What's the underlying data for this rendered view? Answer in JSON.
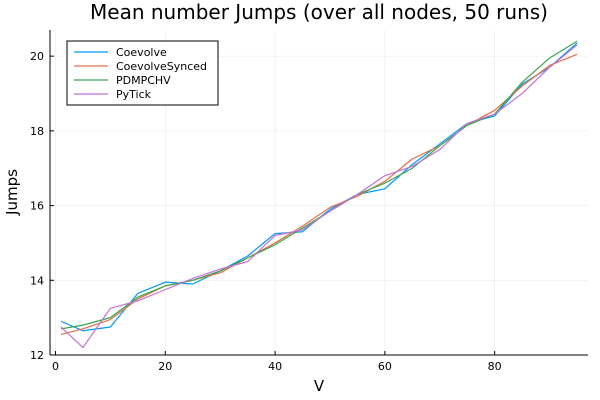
{
  "chart_data": {
    "type": "line",
    "title": "Mean number Jumps (over all nodes, 50 runs)",
    "xlabel": "V",
    "ylabel": "Jumps",
    "xlim": [
      -1,
      97
    ],
    "ylim": [
      12,
      20.7
    ],
    "xticks": [
      0,
      20,
      40,
      60,
      80
    ],
    "yticks": [
      12,
      14,
      16,
      18,
      20
    ],
    "grid": true,
    "legend_position": "top-left",
    "series": [
      {
        "name": "Coevolve",
        "color": "#009AFA",
        "x": [
          1,
          5,
          10,
          15,
          20,
          25,
          30,
          35,
          40,
          45,
          50,
          55,
          60,
          65,
          70,
          75,
          80,
          85,
          90,
          95
        ],
        "y": [
          12.9,
          12.65,
          12.75,
          13.65,
          13.95,
          13.9,
          14.25,
          14.65,
          15.25,
          15.3,
          15.9,
          16.3,
          16.45,
          17.1,
          17.65,
          18.2,
          18.4,
          19.25,
          19.7,
          20.35
        ]
      },
      {
        "name": "CoevolveSynced",
        "color": "#E26F46",
        "x": [
          1,
          5,
          10,
          15,
          20,
          25,
          30,
          35,
          40,
          45,
          50,
          55,
          60,
          65,
          70,
          75,
          80,
          85,
          90,
          95
        ],
        "y": [
          12.55,
          12.7,
          12.95,
          13.5,
          13.85,
          14.0,
          14.2,
          14.6,
          15.0,
          15.45,
          15.95,
          16.25,
          16.65,
          17.25,
          17.6,
          18.15,
          18.55,
          19.2,
          19.75,
          20.05
        ]
      },
      {
        "name": "PDMPCHV",
        "color": "#3DA44D",
        "x": [
          1,
          5,
          10,
          15,
          20,
          25,
          30,
          35,
          40,
          45,
          50,
          55,
          60,
          65,
          70,
          75,
          80,
          85,
          90,
          95
        ],
        "y": [
          12.7,
          12.8,
          13.0,
          13.55,
          13.85,
          14.0,
          14.25,
          14.6,
          14.95,
          15.4,
          15.85,
          16.3,
          16.6,
          17.0,
          17.6,
          18.15,
          18.45,
          19.3,
          19.95,
          20.4
        ]
      },
      {
        "name": "PyTick",
        "color": "#C271D2",
        "x": [
          1,
          5,
          10,
          15,
          20,
          25,
          30,
          35,
          40,
          45,
          50,
          55,
          60,
          65,
          70,
          75,
          80,
          85,
          90,
          95
        ],
        "y": [
          12.75,
          12.2,
          13.25,
          13.45,
          13.75,
          14.05,
          14.3,
          14.5,
          15.2,
          15.35,
          15.85,
          16.3,
          16.8,
          17.05,
          17.5,
          18.2,
          18.45,
          19.0,
          19.7,
          20.3
        ]
      }
    ]
  }
}
